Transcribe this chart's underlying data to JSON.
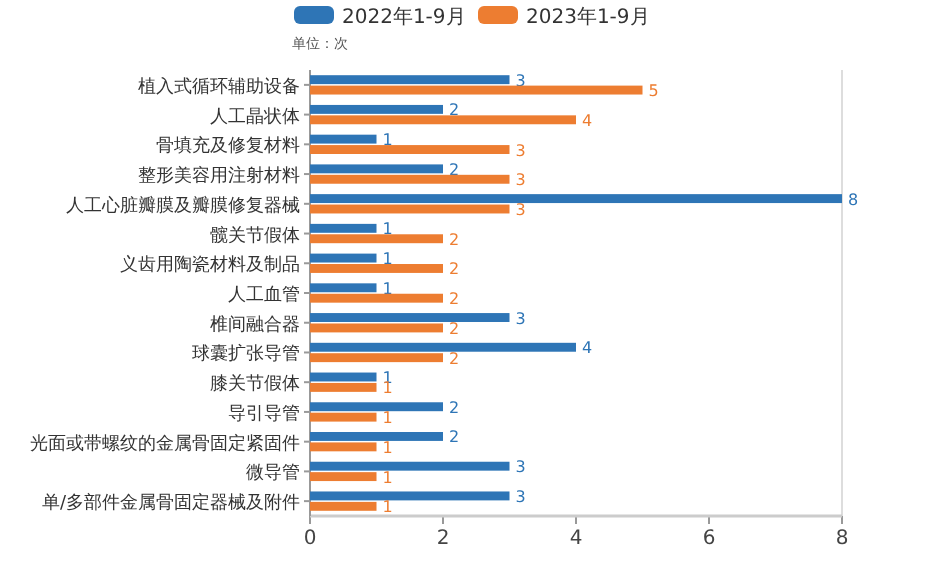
{
  "chart_data": {
    "type": "bar",
    "orientation": "horizontal",
    "annotations": [
      "单位：次"
    ],
    "categories": [
      "植入式循环辅助设备",
      "人工晶状体",
      "骨填充及修复材料",
      "整形美容用注射材料",
      "人工心脏瓣膜及瓣膜修复器械",
      "髋关节假体",
      "义齿用陶瓷材料及制品",
      "人工血管",
      "椎间融合器",
      "球囊扩张导管",
      "膝关节假体",
      "导引导管",
      "光面或带螺纹的金属骨固定紧固件",
      "微导管",
      "单/多部件金属骨固定器械及附件"
    ],
    "series": [
      {
        "name": "2022年1-9月",
        "color": "#2e75b6",
        "values": [
          3,
          2,
          1,
          2,
          8,
          1,
          1,
          1,
          3,
          4,
          1,
          2,
          2,
          3,
          3
        ]
      },
      {
        "name": "2023年1-9月",
        "color": "#ed7d31",
        "values": [
          5,
          4,
          3,
          3,
          3,
          2,
          2,
          2,
          2,
          2,
          1,
          1,
          1,
          1,
          1
        ]
      }
    ],
    "xlim": [
      0,
      8
    ],
    "xticks": [
      0,
      2,
      4,
      6,
      8
    ],
    "data_labels": true,
    "legend": "top",
    "grid": false
  }
}
